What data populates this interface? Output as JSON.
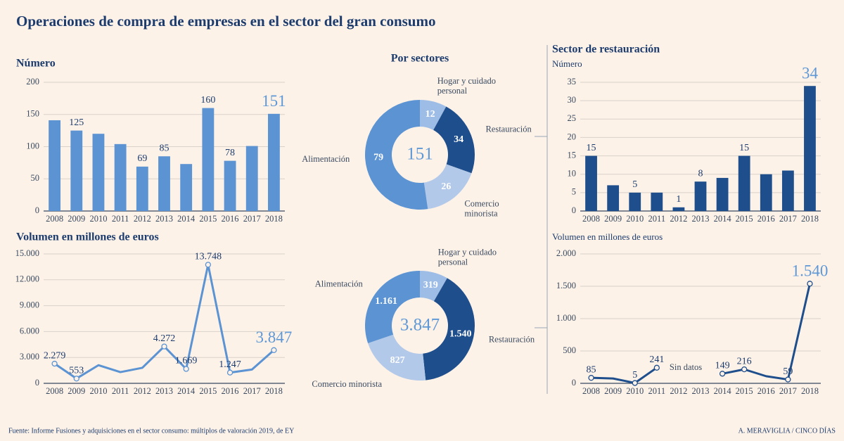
{
  "title": "Operaciones de compra de empresas en el sector del gran consumo",
  "source": "Fuente: Informe Fusiones y adquisiciones en el sector consumo: múltiplos de valoración 2019, de EY",
  "credit": "A. MERAVIGLIA / CINCO DÍAS",
  "chart_data": [
    {
      "type": "bar",
      "title": "Número",
      "categories": [
        "2008",
        "2009",
        "2010",
        "2011",
        "2012",
        "2013",
        "2014",
        "2015",
        "2016",
        "2017",
        "2018"
      ],
      "values": [
        141,
        125,
        120,
        104,
        69,
        85,
        73,
        160,
        78,
        101,
        151
      ],
      "value_labels": [
        null,
        "125",
        null,
        null,
        "69",
        "85",
        null,
        "160",
        "78",
        null,
        "151"
      ],
      "color": "#5b93d3",
      "ylim": [
        0,
        200
      ],
      "yticks": [
        0,
        50,
        100,
        150,
        200
      ],
      "grid": true
    },
    {
      "type": "line",
      "title": "Volumen en millones de euros",
      "categories": [
        "2008",
        "2009",
        "2010",
        "2011",
        "2012",
        "2013",
        "2014",
        "2015",
        "2016",
        "2017",
        "2018"
      ],
      "values": [
        2279,
        553,
        2100,
        1300,
        1800,
        4272,
        1669,
        13748,
        1247,
        1600,
        3847
      ],
      "value_labels": [
        "2.279",
        "553",
        null,
        null,
        null,
        "4.272",
        "1.669",
        "13.748",
        "1.247",
        null,
        "3.847"
      ],
      "color": "#5b93d3",
      "ylim": [
        0,
        15000
      ],
      "yticks": [
        0,
        {
          "value": 3000,
          "label": "3.000"
        },
        {
          "value": 6000,
          "label": "6.000"
        },
        {
          "value": 9000,
          "label": "9.000"
        },
        {
          "value": 12000,
          "label": "12.000"
        },
        {
          "value": 15000,
          "label": "15.000"
        }
      ],
      "grid": true
    },
    {
      "type": "donut",
      "title": "Por sectores",
      "categories": [
        "Hogar y cuidado personal",
        "Restauración",
        "Comercio minorista",
        "Alimentación"
      ],
      "values": [
        12,
        34,
        26,
        79
      ],
      "colors": [
        "#9dbde6",
        "#1f4e8c",
        "#b3c9ea",
        "#5b93d3"
      ],
      "total": 151
    },
    {
      "type": "donut",
      "categories": [
        "Hogar y cuidado personal",
        "Restauración",
        "Comercio minorista",
        "Alimentación"
      ],
      "values": [
        319,
        1540,
        827,
        1161
      ],
      "value_labels": [
        "319",
        "1.540",
        "827",
        "1.161"
      ],
      "colors": [
        "#9dbde6",
        "#1f4e8c",
        "#b3c9ea",
        "#5b93d3"
      ],
      "total": 3847,
      "total_label": "3.847"
    },
    {
      "type": "bar",
      "title": "Sector de restauración",
      "subtitle": "Número",
      "categories": [
        "2008",
        "2009",
        "2010",
        "2011",
        "2012",
        "2013",
        "2014",
        "2015",
        "2016",
        "2017",
        "2018"
      ],
      "values": [
        15,
        7,
        5,
        5,
        1,
        8,
        9,
        15,
        10,
        11,
        34
      ],
      "value_labels": [
        "15",
        null,
        "5",
        null,
        "1",
        "8",
        null,
        "15",
        null,
        null,
        "34"
      ],
      "color": "#1f4e8c",
      "ylim": [
        0,
        35
      ],
      "yticks": [
        0,
        5,
        10,
        15,
        20,
        25,
        30,
        35
      ],
      "grid": true
    },
    {
      "type": "line",
      "subtitle": "Volumen en millones de euros",
      "categories": [
        "2008",
        "2009",
        "2010",
        "2011",
        "2012",
        "2013",
        "2014",
        "2015",
        "2016",
        "2017",
        "2018"
      ],
      "values": [
        85,
        75,
        5,
        241,
        null,
        null,
        149,
        216,
        110,
        59,
        1540
      ],
      "value_labels": [
        "85",
        null,
        "5",
        "241",
        null,
        null,
        "149",
        "216",
        null,
        "59",
        "1.540"
      ],
      "annotation": "Sin datos",
      "color": "#1f4e8c",
      "ylim": [
        0,
        2000
      ],
      "yticks": [
        0,
        500,
        {
          "value": 1000,
          "label": "1.000"
        },
        {
          "value": 1500,
          "label": "1.500"
        },
        {
          "value": 2000,
          "label": "2.000"
        }
      ],
      "grid": true
    }
  ]
}
